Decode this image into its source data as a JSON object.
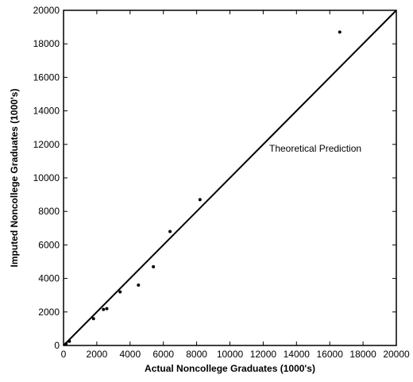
{
  "chart_data": {
    "type": "scatter",
    "title": "",
    "xlabel": "Actual Noncollege Graduates (1000's)",
    "ylabel": "Imputed Noncollege Graduates (1000's)",
    "xlim": [
      0,
      20000
    ],
    "ylim": [
      0,
      20000
    ],
    "xticks": [
      "0",
      "2000",
      "4000",
      "6000",
      "8000",
      "10000",
      "12000",
      "14000",
      "16000",
      "18000",
      "20000"
    ],
    "yticks": [
      "0",
      "2000",
      "4000",
      "6000",
      "8000",
      "10000",
      "12000",
      "14000",
      "16000",
      "18000",
      "20000"
    ],
    "grid": false,
    "points": [
      {
        "x": 150,
        "y": 100
      },
      {
        "x": 350,
        "y": 250
      },
      {
        "x": 1800,
        "y": 1600
      },
      {
        "x": 2400,
        "y": 2150
      },
      {
        "x": 2600,
        "y": 2200
      },
      {
        "x": 3400,
        "y": 3200
      },
      {
        "x": 4500,
        "y": 3600
      },
      {
        "x": 5400,
        "y": 4700
      },
      {
        "x": 6400,
        "y": 6800
      },
      {
        "x": 8200,
        "y": 8700
      },
      {
        "x": 16600,
        "y": 18700
      }
    ],
    "reference_line": {
      "label": "Theoretical Prediction",
      "from": [
        0,
        0
      ],
      "to": [
        20000,
        20000
      ]
    }
  }
}
